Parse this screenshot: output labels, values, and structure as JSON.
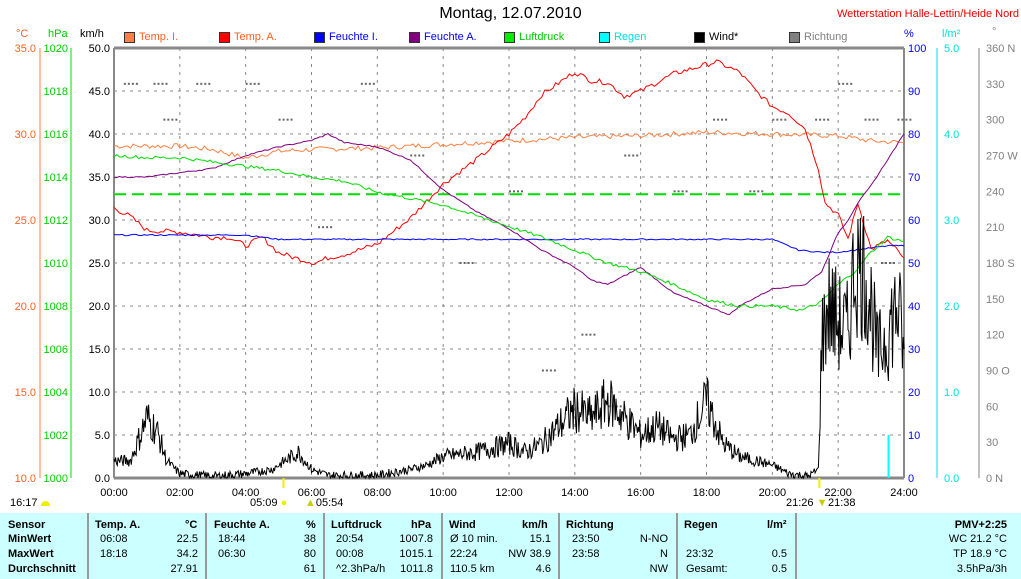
{
  "header": {
    "title": "Montag, 12.07.2010",
    "station": "Wetterstation Halle-Lettin/Heide Nord"
  },
  "axes_units": {
    "temp": "°C",
    "pressure": "hPa",
    "wind": "km/h",
    "humidity": "%",
    "rain": "l/m²",
    "direction": "°"
  },
  "legend": [
    {
      "label": "Temp. I.",
      "color": "#ff8040"
    },
    {
      "label": "Temp. A.",
      "color": "#ff0000"
    },
    {
      "label": "Feuchte I.",
      "color": "#0000ff"
    },
    {
      "label": "Feuchte A.",
      "color": "#800080"
    },
    {
      "label": "Luftdruck",
      "color": "#00ee00"
    },
    {
      "label": "Regen",
      "color": "#00ffff"
    },
    {
      "label": "Wind*",
      "color": "#000000"
    },
    {
      "label": "Richtung",
      "color": "#808080"
    }
  ],
  "legend_text_colors": [
    "#ff6020",
    "#ff6020",
    "#0000ff",
    "#0000ff",
    "#00cc00",
    "#00e0e0",
    "#000000",
    "#808080"
  ],
  "chart_data": {
    "type": "line",
    "title": "Montag, 12.07.2010",
    "x_ticks": [
      "00:00",
      "02:00",
      "04:00",
      "06:00",
      "08:00",
      "10:00",
      "12:00",
      "14:00",
      "16:00",
      "18:00",
      "20:00",
      "22:00",
      "24:00"
    ],
    "xlim": [
      0,
      24
    ],
    "temp_ticks": [
      "35.0",
      "30.0",
      "25.0",
      "20.0",
      "15.0",
      "10.0"
    ],
    "temp_range": [
      10,
      35
    ],
    "pressure_ticks": [
      "1020",
      "1018",
      "1016",
      "1014",
      "1012",
      "1010",
      "1008",
      "1006",
      "1004",
      "1002",
      "1000"
    ],
    "pressure_range": [
      1000,
      1020
    ],
    "wind_ticks": [
      "50.0",
      "45.0",
      "40.0",
      "35.0",
      "30.0",
      "25.0",
      "20.0",
      "15.0",
      "10.0",
      "5.0",
      "0.0"
    ],
    "wind_range": [
      0,
      50
    ],
    "humidity_ticks": [
      "100",
      "90",
      "80",
      "70",
      "60",
      "50",
      "40",
      "30",
      "20",
      "10",
      "0"
    ],
    "humidity_range": [
      0,
      100
    ],
    "rain_ticks": [
      "5.0",
      "4.0",
      "3.0",
      "2.0",
      "1.0",
      "0.0"
    ],
    "rain_range": [
      0,
      5
    ],
    "direction_ticks": [
      "360 N",
      "330",
      "300",
      "270 W",
      "240",
      "210",
      "180 S",
      "150",
      "120",
      "90 O",
      "60",
      "30",
      "0 N"
    ],
    "direction_range": [
      0,
      360
    ],
    "series": [
      {
        "name": "Temp. I.",
        "axis": "temp",
        "color": "#ff8040",
        "points": [
          [
            0,
            29.3
          ],
          [
            2,
            29.3
          ],
          [
            3,
            29.1
          ],
          [
            4,
            28.6
          ],
          [
            5,
            29
          ],
          [
            6,
            29.1
          ],
          [
            8,
            29.2
          ],
          [
            10,
            29.4
          ],
          [
            12,
            29.6
          ],
          [
            14,
            29.8
          ],
          [
            16,
            29.9
          ],
          [
            18,
            30.1
          ],
          [
            20,
            30
          ],
          [
            22,
            29.9
          ],
          [
            23,
            29.6
          ],
          [
            24,
            29.5
          ]
        ]
      },
      {
        "name": "Temp. A.",
        "axis": "temp",
        "color": "#ff0000",
        "points": [
          [
            0,
            25.7
          ],
          [
            0.5,
            25.2
          ],
          [
            1,
            24.4
          ],
          [
            2,
            24.3
          ],
          [
            3,
            24
          ],
          [
            3.5,
            24
          ],
          [
            4,
            23.5
          ],
          [
            4.5,
            24
          ],
          [
            5,
            23.1
          ],
          [
            5.5,
            22.8
          ],
          [
            6.1,
            22.5
          ],
          [
            6.5,
            22.8
          ],
          [
            7,
            23
          ],
          [
            8,
            23.6
          ],
          [
            9,
            25.1
          ],
          [
            10,
            27.1
          ],
          [
            11,
            28.5
          ],
          [
            12,
            30
          ],
          [
            12.5,
            31
          ],
          [
            13,
            32.3
          ],
          [
            14,
            33.6
          ],
          [
            14.5,
            33.1
          ],
          [
            15,
            33
          ],
          [
            15.5,
            32.2
          ],
          [
            16,
            32.5
          ],
          [
            17,
            33.5
          ],
          [
            18.3,
            34.2
          ],
          [
            19,
            33.6
          ],
          [
            19.5,
            32.5
          ],
          [
            20,
            31.6
          ],
          [
            20.5,
            31.2
          ],
          [
            21,
            30.3
          ],
          [
            21.4,
            28
          ],
          [
            21.6,
            26
          ],
          [
            22,
            25.3
          ],
          [
            22.3,
            23.9
          ],
          [
            22.6,
            26
          ],
          [
            23,
            23.3
          ],
          [
            23.5,
            23.8
          ],
          [
            24,
            22.8
          ]
        ]
      },
      {
        "name": "Feuchte I.",
        "axis": "humidity",
        "color": "#0000ff",
        "points": [
          [
            0,
            56.5
          ],
          [
            4,
            56.5
          ],
          [
            5,
            55.5
          ],
          [
            6,
            55.5
          ],
          [
            8,
            55.5
          ],
          [
            10,
            55.5
          ],
          [
            14,
            55.5
          ],
          [
            16,
            55.5
          ],
          [
            19,
            55.5
          ],
          [
            20,
            55.5
          ],
          [
            20.8,
            53
          ],
          [
            21.5,
            52.5
          ],
          [
            22,
            52.5
          ],
          [
            22.5,
            53
          ],
          [
            23,
            53.5
          ],
          [
            23.5,
            54
          ],
          [
            24,
            54
          ]
        ]
      },
      {
        "name": "Feuchte A.",
        "axis": "humidity",
        "color": "#800080",
        "points": [
          [
            0,
            70
          ],
          [
            1,
            70
          ],
          [
            2,
            71
          ],
          [
            3,
            72
          ],
          [
            4,
            75
          ],
          [
            5,
            77
          ],
          [
            6,
            78.5
          ],
          [
            6.5,
            80
          ],
          [
            7,
            78
          ],
          [
            8,
            77
          ],
          [
            9,
            74
          ],
          [
            10,
            67
          ],
          [
            11,
            62
          ],
          [
            12,
            58
          ],
          [
            13,
            53
          ],
          [
            14,
            49
          ],
          [
            14.5,
            46
          ],
          [
            15,
            45
          ],
          [
            15.5,
            47
          ],
          [
            16,
            49
          ],
          [
            16.5,
            46
          ],
          [
            17,
            43
          ],
          [
            18,
            40
          ],
          [
            18.7,
            38
          ],
          [
            19,
            40
          ],
          [
            20,
            44
          ],
          [
            21,
            45
          ],
          [
            21.5,
            48
          ],
          [
            22,
            57
          ],
          [
            22.3,
            60
          ],
          [
            22.6,
            64
          ],
          [
            23,
            68
          ],
          [
            23.5,
            74
          ],
          [
            24,
            80
          ]
        ]
      },
      {
        "name": "Luftdruck",
        "axis": "pressure",
        "color": "#00dd00",
        "points": [
          [
            0,
            1015
          ],
          [
            1,
            1014.9
          ],
          [
            2,
            1014.9
          ],
          [
            3,
            1014.7
          ],
          [
            4,
            1014.5
          ],
          [
            5,
            1014.3
          ],
          [
            6,
            1014
          ],
          [
            7,
            1013.8
          ],
          [
            8,
            1013.3
          ],
          [
            9,
            1013
          ],
          [
            10,
            1012.7
          ],
          [
            11,
            1012.2
          ],
          [
            12,
            1011.7
          ],
          [
            13,
            1011.2
          ],
          [
            14,
            1010.6
          ],
          [
            15,
            1010
          ],
          [
            16,
            1009.6
          ],
          [
            17,
            1009
          ],
          [
            18,
            1008.3
          ],
          [
            19,
            1008
          ],
          [
            20,
            1008
          ],
          [
            20.9,
            1007.8
          ],
          [
            21.5,
            1008.2
          ],
          [
            22,
            1009
          ],
          [
            22.5,
            1009.6
          ],
          [
            23,
            1010.5
          ],
          [
            23.5,
            1011.2
          ],
          [
            24,
            1011
          ]
        ]
      },
      {
        "name": "Wind*",
        "axis": "wind",
        "color": "#000000",
        "points": [
          [
            0,
            2
          ],
          [
            0.5,
            2
          ],
          [
            0.8,
            5
          ],
          [
            1,
            7
          ],
          [
            1.3,
            5.5
          ],
          [
            1.6,
            2
          ],
          [
            2,
            0.5
          ],
          [
            3,
            0.2
          ],
          [
            4,
            0.5
          ],
          [
            4.8,
            1
          ],
          [
            5.2,
            2
          ],
          [
            5.6,
            3
          ],
          [
            6,
            1
          ],
          [
            6.5,
            0.3
          ],
          [
            8,
            0.3
          ],
          [
            9,
            1
          ],
          [
            9.5,
            1.5
          ],
          [
            10,
            2.5
          ],
          [
            11,
            3
          ],
          [
            11.5,
            3.5
          ],
          [
            12,
            4
          ],
          [
            12.5,
            3
          ],
          [
            13,
            4
          ],
          [
            13.5,
            6
          ],
          [
            14,
            8
          ],
          [
            14.5,
            7
          ],
          [
            15,
            9
          ],
          [
            15.5,
            7
          ],
          [
            16,
            5
          ],
          [
            16.5,
            6
          ],
          [
            17,
            4.5
          ],
          [
            17.5,
            5
          ],
          [
            18,
            9
          ],
          [
            18.5,
            4
          ],
          [
            19,
            2.5
          ],
          [
            20,
            1.5
          ],
          [
            20.5,
            0.5
          ],
          [
            21.1,
            0.2
          ],
          [
            21.4,
            1
          ],
          [
            21.5,
            16
          ],
          [
            21.7,
            20
          ],
          [
            22,
            18
          ],
          [
            22.3,
            17
          ],
          [
            22.5,
            25
          ],
          [
            22.8,
            24
          ],
          [
            23,
            20
          ],
          [
            23.2,
            14
          ],
          [
            23.5,
            17
          ],
          [
            23.8,
            20
          ],
          [
            24,
            15
          ]
        ]
      },
      {
        "name": "Regen",
        "axis": "rain",
        "color": "#00ffff",
        "bars": [
          [
            23.53,
            0.5
          ]
        ]
      }
    ],
    "reference_lines": [
      {
        "axis": "pressure",
        "value": 1013.2,
        "color": "#00dd00",
        "style": "dashed"
      }
    ],
    "direction_samples": [
      [
        0.3,
        330
      ],
      [
        1.2,
        330
      ],
      [
        1.5,
        300
      ],
      [
        2.5,
        330
      ],
      [
        4,
        330
      ],
      [
        5,
        300
      ],
      [
        6.2,
        210
      ],
      [
        7.5,
        330
      ],
      [
        9,
        270
      ],
      [
        10.5,
        180
      ],
      [
        12,
        240
      ],
      [
        13,
        90
      ],
      [
        14.2,
        120
      ],
      [
        15,
        60
      ],
      [
        15.5,
        270
      ],
      [
        17,
        240
      ],
      [
        18.2,
        300
      ],
      [
        19.3,
        240
      ],
      [
        20,
        300
      ],
      [
        21.3,
        300
      ],
      [
        22,
        330
      ],
      [
        22.8,
        300
      ],
      [
        23.3,
        180
      ],
      [
        23.8,
        300
      ]
    ]
  },
  "sun": {
    "day_length": "16:17",
    "sunrise": "05:09",
    "dawn": "05:54",
    "sunset": "21:26",
    "dusk": "21:38"
  },
  "table": {
    "headers": {
      "sensor": "Sensor",
      "temp": "Temp. A.",
      "temp_unit": "°C",
      "hum": "Feuchte A.",
      "hum_unit": "%",
      "press": "Luftdruck",
      "press_unit": "hPa",
      "wind": "Wind",
      "wind_unit": "km/h",
      "dir": "Richtung",
      "rain": "Regen",
      "rain_unit": "l/m²",
      "pmv": "PMV+2:25"
    },
    "rows": [
      {
        "label": "MinWert",
        "t_time": "06:08",
        "t_val": "22.5",
        "h_time": "18:44",
        "h_val": "38",
        "p_time": "20:54",
        "p_val": "1007.8",
        "w_a": "Ø 10 min.",
        "w_val": "15.1",
        "d_time": "23:50",
        "d_val": "N-NO",
        "r_time": "",
        "r_val": "",
        "extra": "WC 21.2 °C"
      },
      {
        "label": "MaxWert",
        "t_time": "18:18",
        "t_val": "34.2",
        "h_time": "06:30",
        "h_val": "80",
        "p_time": "00:08",
        "p_val": "1015.1",
        "w_a": "22:24",
        "w_val": "NW 38.9",
        "d_time": "23:58",
        "d_val": "N",
        "r_time": "23:32",
        "r_val": "0.5",
        "extra": "TP 18.9 °C"
      },
      {
        "label": "Durchschnitt",
        "t_time": "",
        "t_val": "27.91",
        "h_time": "",
        "h_val": "61",
        "p_time": "^2.3hPa/h",
        "p_val": "1011.8",
        "w_a": "110.5 km",
        "w_val": "4.6",
        "d_time": "",
        "d_val": "NW",
        "r_time": "Gesamt:",
        "r_val": "0.5",
        "extra": "3.5hPa/3h"
      }
    ]
  }
}
